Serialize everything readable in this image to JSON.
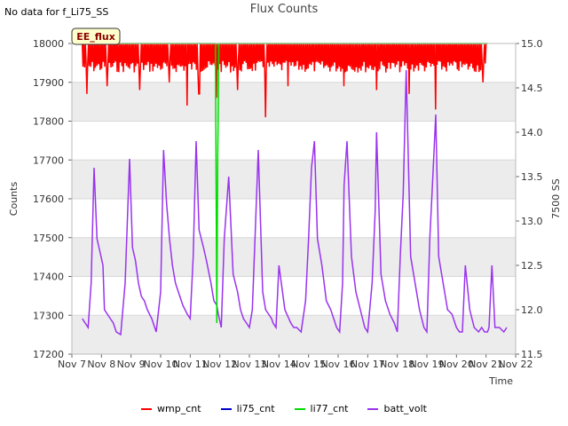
{
  "header": {
    "no_data_text": "No data for f_Li75_SS",
    "title": "Flux Counts"
  },
  "chart_data": {
    "type": "line",
    "title": "Flux Counts",
    "xlabel": "Time",
    "ylabel": "Counts",
    "y2label": "7500 SS",
    "ylim": [
      17200,
      18000
    ],
    "y2lim": [
      11.5,
      15.0
    ],
    "xlim": [
      7,
      22
    ],
    "x_ticks": [
      {
        "v": 7,
        "label": "Nov 7"
      },
      {
        "v": 8,
        "label": "Nov 8"
      },
      {
        "v": 9,
        "label": "Nov 9"
      },
      {
        "v": 10,
        "label": "Nov 10"
      },
      {
        "v": 11,
        "label": "Nov 11"
      },
      {
        "v": 12,
        "label": "Nov 12"
      },
      {
        "v": 13,
        "label": "Nov 13"
      },
      {
        "v": 14,
        "label": "Nov 14"
      },
      {
        "v": 15,
        "label": "Nov 15"
      },
      {
        "v": 16,
        "label": "Nov 16"
      },
      {
        "v": 17,
        "label": "Nov 17"
      },
      {
        "v": 18,
        "label": "Nov 18"
      },
      {
        "v": 19,
        "label": "Nov 19"
      },
      {
        "v": 20,
        "label": "Nov 20"
      },
      {
        "v": 21,
        "label": "Nov 21"
      },
      {
        "v": 22,
        "label": "Nov 22"
      }
    ],
    "y_ticks": [
      17200,
      17300,
      17400,
      17500,
      17600,
      17700,
      17800,
      17900,
      18000
    ],
    "y2_ticks": [
      "11.5",
      "12.0",
      "12.5",
      "13.0",
      "13.5",
      "14.0",
      "14.5",
      "15.0"
    ],
    "annotation": "EE_flux",
    "legend": [
      {
        "name": "wmp_cnt",
        "color": "#ff0000"
      },
      {
        "name": "li75_cnt",
        "color": "#0000cc"
      },
      {
        "name": "li77_cnt",
        "color": "#00dd00"
      },
      {
        "name": "batt_volt",
        "color": "#9933ee"
      }
    ],
    "series": [
      {
        "name": "wmp_cnt",
        "axis": "left",
        "color": "#ff0000",
        "style": "noisy-band",
        "x_range": [
          7.35,
          21.0
        ],
        "top": 18000,
        "base": 17955,
        "band": 30,
        "dips": [
          {
            "x": 7.5,
            "y": 17870
          },
          {
            "x": 8.2,
            "y": 17890
          },
          {
            "x": 9.3,
            "y": 17880
          },
          {
            "x": 10.3,
            "y": 17900
          },
          {
            "x": 10.9,
            "y": 17840
          },
          {
            "x": 11.3,
            "y": 17870
          },
          {
            "x": 11.9,
            "y": 17860
          },
          {
            "x": 12.6,
            "y": 17880
          },
          {
            "x": 13.55,
            "y": 17810
          },
          {
            "x": 14.3,
            "y": 17890
          },
          {
            "x": 16.2,
            "y": 17890
          },
          {
            "x": 17.3,
            "y": 17880
          },
          {
            "x": 18.4,
            "y": 17870
          },
          {
            "x": 19.3,
            "y": 17830
          },
          {
            "x": 20.9,
            "y": 17900
          }
        ]
      },
      {
        "name": "li77_cnt",
        "axis": "left",
        "color": "#00dd00",
        "style": "line",
        "x": [
          7.3,
          11.85,
          11.9,
          11.93,
          11.97,
          12.0,
          12.05,
          21.05
        ],
        "y": [
          18000,
          18000,
          17280,
          17700,
          18000,
          18000,
          18000,
          18000
        ]
      },
      {
        "name": "batt_volt",
        "axis": "right",
        "color": "#9933ee",
        "style": "line",
        "x": [
          7.35,
          7.45,
          7.55,
          7.65,
          7.75,
          7.85,
          7.95,
          8.05,
          8.1,
          8.2,
          8.3,
          8.4,
          8.5,
          8.65,
          8.8,
          8.95,
          9.05,
          9.15,
          9.25,
          9.35,
          9.45,
          9.55,
          9.7,
          9.85,
          10.0,
          10.1,
          10.2,
          10.3,
          10.4,
          10.5,
          10.6,
          10.75,
          10.9,
          11.0,
          11.1,
          11.2,
          11.3,
          11.45,
          11.55,
          11.7,
          11.8,
          11.9,
          11.95,
          12.05,
          12.15,
          12.3,
          12.45,
          12.6,
          12.7,
          12.8,
          12.9,
          13.0,
          13.1,
          13.2,
          13.3,
          13.45,
          13.55,
          13.65,
          13.75,
          13.8,
          13.9,
          14.0,
          14.2,
          14.4,
          14.5,
          14.6,
          14.75,
          14.9,
          15.0,
          15.1,
          15.2,
          15.3,
          15.45,
          15.6,
          15.75,
          15.95,
          16.05,
          16.15,
          16.2,
          16.3,
          16.45,
          16.6,
          16.75,
          16.9,
          17.0,
          17.15,
          17.25,
          17.3,
          17.45,
          17.6,
          17.75,
          17.9,
          18.0,
          18.1,
          18.2,
          18.3,
          18.45,
          18.6,
          18.75,
          18.9,
          19.0,
          19.1,
          19.2,
          19.3,
          19.4,
          19.55,
          19.7,
          19.85,
          20.0,
          20.1,
          20.2,
          20.3,
          20.45,
          20.6,
          20.75,
          20.85,
          20.95,
          21.05,
          21.1,
          21.2,
          21.3,
          21.45,
          21.6,
          21.7
        ],
        "y": [
          11.9,
          11.85,
          11.8,
          12.3,
          13.6,
          12.8,
          12.65,
          12.5,
          12.0,
          11.95,
          11.9,
          11.85,
          11.75,
          11.72,
          12.3,
          13.7,
          12.7,
          12.55,
          12.3,
          12.15,
          12.1,
          12.0,
          11.9,
          11.75,
          12.2,
          13.8,
          13.2,
          12.8,
          12.5,
          12.3,
          12.2,
          12.05,
          11.95,
          11.9,
          12.6,
          13.9,
          12.9,
          12.7,
          12.55,
          12.3,
          12.1,
          12.05,
          11.95,
          11.8,
          12.8,
          13.5,
          12.4,
          12.2,
          12.0,
          11.9,
          11.85,
          11.8,
          12.0,
          12.9,
          13.8,
          12.2,
          12.0,
          11.95,
          11.9,
          11.85,
          11.8,
          12.5,
          12.0,
          11.85,
          11.8,
          11.8,
          11.75,
          12.1,
          12.8,
          13.6,
          13.9,
          12.8,
          12.5,
          12.1,
          12.0,
          11.8,
          11.75,
          12.3,
          13.4,
          13.9,
          12.6,
          12.2,
          12.0,
          11.8,
          11.75,
          12.3,
          13.1,
          14.0,
          12.4,
          12.1,
          11.95,
          11.85,
          11.75,
          12.6,
          13.3,
          14.7,
          12.6,
          12.3,
          12.0,
          11.8,
          11.75,
          12.8,
          13.5,
          14.2,
          12.6,
          12.3,
          12.0,
          11.95,
          11.8,
          11.75,
          11.75,
          12.5,
          12.0,
          11.8,
          11.75,
          11.8,
          11.75,
          11.75,
          11.8,
          12.5,
          11.8,
          11.8,
          11.75,
          11.8
        ]
      },
      {
        "name": "li75_cnt",
        "axis": "left",
        "color": "#0000cc",
        "style": "line",
        "x": [],
        "y": []
      }
    ]
  }
}
